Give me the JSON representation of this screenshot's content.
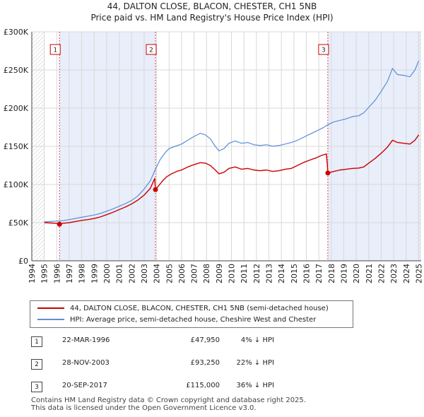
{
  "header": {
    "title_line1": "44, DALTON CLOSE, BLACON, CHESTER, CH1 5NB",
    "title_line2": "Price paid vs. HM Land Registry's House Price Index (HPI)"
  },
  "chart_data": {
    "type": "line",
    "title": "44, DALTON CLOSE, BLACON, CHESTER, CH1 5NB — Price paid vs. HM Land Registry's House Price Index (HPI)",
    "xlabel": "",
    "ylabel": "",
    "xlim": [
      1994,
      2025.2
    ],
    "ylim": [
      0,
      300000
    ],
    "x_ticks": [
      1994,
      1995,
      1996,
      1997,
      1998,
      1999,
      2000,
      2001,
      2002,
      2003,
      2004,
      2005,
      2006,
      2007,
      2008,
      2009,
      2010,
      2011,
      2012,
      2013,
      2014,
      2015,
      2016,
      2017,
      2018,
      2019,
      2020,
      2021,
      2022,
      2023,
      2024,
      2025
    ],
    "y_ticks": [
      0,
      50000,
      100000,
      150000,
      200000,
      250000,
      300000
    ],
    "y_tick_labels": [
      "£0",
      "£50K",
      "£100K",
      "£150K",
      "£200K",
      "£250K",
      "£300K"
    ],
    "grid": true,
    "series": [
      {
        "name": "44, DALTON CLOSE, BLACON, CHESTER, CH1 5NB (semi-detached house)",
        "color": "#cc0000",
        "points": [
          [
            1995.0,
            50000
          ],
          [
            1995.5,
            49500
          ],
          [
            1996.0,
            49000
          ],
          [
            1996.22,
            47950
          ],
          [
            1996.5,
            49200
          ],
          [
            1997.0,
            50000
          ],
          [
            1997.5,
            51500
          ],
          [
            1998.0,
            53000
          ],
          [
            1998.5,
            54000
          ],
          [
            1999.0,
            55500
          ],
          [
            1999.5,
            57500
          ],
          [
            2000.0,
            60500
          ],
          [
            2000.5,
            63500
          ],
          [
            2001.0,
            67000
          ],
          [
            2001.5,
            70500
          ],
          [
            2002.0,
            74500
          ],
          [
            2002.5,
            79500
          ],
          [
            2003.0,
            86000
          ],
          [
            2003.5,
            95000
          ],
          [
            2003.85,
            108000
          ],
          [
            2003.91,
            93250
          ],
          [
            2004.2,
            99000
          ],
          [
            2004.5,
            105000
          ],
          [
            2004.8,
            110000
          ],
          [
            2005.2,
            114000
          ],
          [
            2005.6,
            117000
          ],
          [
            2006.0,
            119000
          ],
          [
            2006.5,
            123000
          ],
          [
            2007.0,
            126000
          ],
          [
            2007.5,
            128500
          ],
          [
            2007.9,
            128000
          ],
          [
            2008.3,
            125000
          ],
          [
            2008.7,
            119000
          ],
          [
            2009.0,
            114000
          ],
          [
            2009.4,
            116000
          ],
          [
            2009.8,
            121000
          ],
          [
            2010.3,
            123000
          ],
          [
            2010.8,
            120000
          ],
          [
            2011.3,
            121000
          ],
          [
            2011.8,
            119000
          ],
          [
            2012.3,
            118000
          ],
          [
            2012.8,
            119000
          ],
          [
            2013.3,
            117000
          ],
          [
            2013.8,
            118000
          ],
          [
            2014.3,
            120000
          ],
          [
            2014.8,
            121000
          ],
          [
            2015.3,
            125000
          ],
          [
            2015.8,
            129000
          ],
          [
            2016.3,
            132000
          ],
          [
            2016.8,
            135000
          ],
          [
            2017.2,
            138000
          ],
          [
            2017.6,
            140000
          ],
          [
            2017.68,
            126000
          ],
          [
            2017.72,
            115000
          ],
          [
            2018.2,
            117000
          ],
          [
            2018.7,
            119000
          ],
          [
            2019.2,
            120000
          ],
          [
            2019.7,
            121000
          ],
          [
            2020.2,
            121500
          ],
          [
            2020.6,
            123000
          ],
          [
            2021.0,
            128000
          ],
          [
            2021.5,
            134000
          ],
          [
            2022.0,
            141000
          ],
          [
            2022.5,
            149000
          ],
          [
            2022.9,
            158000
          ],
          [
            2023.3,
            155000
          ],
          [
            2023.8,
            154000
          ],
          [
            2024.3,
            153000
          ],
          [
            2024.7,
            158000
          ],
          [
            2025.0,
            165000
          ]
        ]
      },
      {
        "name": "HPI: Average price, semi-detached house, Cheshire West and Chester",
        "color": "#5b8dd6",
        "points": [
          [
            1995.0,
            51000
          ],
          [
            1995.5,
            51500
          ],
          [
            1996.0,
            52000
          ],
          [
            1996.5,
            52500
          ],
          [
            1997.0,
            54000
          ],
          [
            1997.5,
            55500
          ],
          [
            1998.0,
            57000
          ],
          [
            1998.5,
            58500
          ],
          [
            1999.0,
            60000
          ],
          [
            1999.5,
            62000
          ],
          [
            2000.0,
            65000
          ],
          [
            2000.5,
            68000
          ],
          [
            2001.0,
            71500
          ],
          [
            2001.5,
            75000
          ],
          [
            2002.0,
            79000
          ],
          [
            2002.5,
            85000
          ],
          [
            2003.0,
            94000
          ],
          [
            2003.5,
            105000
          ],
          [
            2003.91,
            120000
          ],
          [
            2004.3,
            133000
          ],
          [
            2004.7,
            142000
          ],
          [
            2005.0,
            147000
          ],
          [
            2005.5,
            150000
          ],
          [
            2006.0,
            153000
          ],
          [
            2006.5,
            158000
          ],
          [
            2007.0,
            163000
          ],
          [
            2007.5,
            167000
          ],
          [
            2007.9,
            165000
          ],
          [
            2008.3,
            160000
          ],
          [
            2008.7,
            150000
          ],
          [
            2009.0,
            144000
          ],
          [
            2009.4,
            147000
          ],
          [
            2009.8,
            154000
          ],
          [
            2010.3,
            157000
          ],
          [
            2010.8,
            154000
          ],
          [
            2011.3,
            155000
          ],
          [
            2011.8,
            152000
          ],
          [
            2012.3,
            151000
          ],
          [
            2012.8,
            152000
          ],
          [
            2013.3,
            150000
          ],
          [
            2013.8,
            151000
          ],
          [
            2014.3,
            153000
          ],
          [
            2014.8,
            155000
          ],
          [
            2015.3,
            158000
          ],
          [
            2015.8,
            162000
          ],
          [
            2016.3,
            166000
          ],
          [
            2016.8,
            170000
          ],
          [
            2017.3,
            174000
          ],
          [
            2017.7,
            178000
          ],
          [
            2018.2,
            182000
          ],
          [
            2018.7,
            184000
          ],
          [
            2019.2,
            186000
          ],
          [
            2019.7,
            189000
          ],
          [
            2020.2,
            190000
          ],
          [
            2020.6,
            194000
          ],
          [
            2021.0,
            201000
          ],
          [
            2021.5,
            210000
          ],
          [
            2022.0,
            222000
          ],
          [
            2022.5,
            235000
          ],
          [
            2022.9,
            252000
          ],
          [
            2023.3,
            244000
          ],
          [
            2023.8,
            243000
          ],
          [
            2024.3,
            241000
          ],
          [
            2024.7,
            250000
          ],
          [
            2025.0,
            262000
          ]
        ]
      }
    ],
    "sales": [
      {
        "label": "1",
        "x": 1996.22,
        "y": 47950,
        "date": "22-MAR-1996",
        "price": "£47,950",
        "hpi": "4% ↓ HPI"
      },
      {
        "label": "2",
        "x": 2003.91,
        "y": 93250,
        "date": "28-NOV-2003",
        "price": "£93,250",
        "hpi": "22% ↓ HPI"
      },
      {
        "label": "3",
        "x": 2017.72,
        "y": 115000,
        "date": "20-SEP-2017",
        "price": "£115,000",
        "hpi": "36% ↓ HPI"
      }
    ],
    "hatch_ranges": [
      [
        1994,
        1995
      ],
      [
        2024.9,
        2025.2
      ]
    ]
  },
  "legend": {
    "property_label": "44, DALTON CLOSE, BLACON, CHESTER, CH1 5NB (semi-detached house)",
    "hpi_label": "HPI: Average price, semi-detached house, Cheshire West and Chester"
  },
  "footer": {
    "line1": "Contains HM Land Registry data © Crown copyright and database right 2025.",
    "line2": "This data is licensed under the Open Government Licence v3.0."
  },
  "colors": {
    "property": "#cc0000",
    "hpi": "#5b8dd6",
    "shade": "#e8eefa"
  }
}
